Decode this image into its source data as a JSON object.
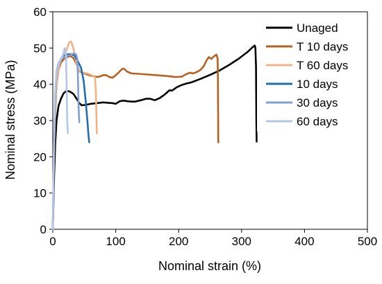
{
  "chart_data": {
    "type": "line",
    "xlabel": "Nominal strain (%)",
    "ylabel": "Nominal stress (MPa)",
    "xlim": [
      0,
      500
    ],
    "ylim": [
      0,
      60
    ],
    "x_ticks": [
      0,
      100,
      200,
      300,
      400,
      500
    ],
    "y_ticks": [
      0,
      10,
      20,
      30,
      40,
      50,
      60
    ],
    "grid": false,
    "legend_position": "top-right",
    "series": [
      {
        "name": "Unaged",
        "color": "#000000",
        "points": [
          [
            0,
            0
          ],
          [
            2,
            14
          ],
          [
            4,
            24
          ],
          [
            6,
            30
          ],
          [
            9,
            34
          ],
          [
            13,
            36
          ],
          [
            17,
            37.5
          ],
          [
            22,
            38.2
          ],
          [
            27,
            38
          ],
          [
            33,
            37.3
          ],
          [
            38,
            36
          ],
          [
            42,
            34.8
          ],
          [
            46,
            34.2
          ],
          [
            52,
            34.3
          ],
          [
            60,
            34.6
          ],
          [
            70,
            34.8
          ],
          [
            80,
            35
          ],
          [
            95,
            34.8
          ],
          [
            100,
            34.6
          ],
          [
            106,
            35.3
          ],
          [
            112,
            35.5
          ],
          [
            120,
            35.3
          ],
          [
            130,
            35.2
          ],
          [
            140,
            35.6
          ],
          [
            148,
            36
          ],
          [
            155,
            36
          ],
          [
            162,
            35.6
          ],
          [
            170,
            36.2
          ],
          [
            178,
            37.2
          ],
          [
            185,
            38.3
          ],
          [
            190,
            38.3
          ],
          [
            197,
            39.2
          ],
          [
            205,
            39.8
          ],
          [
            212,
            40.2
          ],
          [
            220,
            40.5
          ],
          [
            235,
            41.5
          ],
          [
            250,
            42.6
          ],
          [
            265,
            43.8
          ],
          [
            280,
            45.3
          ],
          [
            295,
            47
          ],
          [
            310,
            49
          ],
          [
            318,
            50.3
          ],
          [
            321,
            50.7
          ],
          [
            322,
            50
          ],
          [
            323,
            45
          ],
          [
            323.5,
            30
          ],
          [
            324,
            24.2
          ]
        ]
      },
      {
        "name": "T 10 days",
        "color": "#b8601e",
        "points": [
          [
            0,
            0
          ],
          [
            2,
            20
          ],
          [
            4,
            33
          ],
          [
            6,
            40
          ],
          [
            9,
            44
          ],
          [
            13,
            46
          ],
          [
            18,
            47
          ],
          [
            23,
            47.5
          ],
          [
            28,
            47.8
          ],
          [
            33,
            47.2
          ],
          [
            38,
            45.5
          ],
          [
            43,
            43.5
          ],
          [
            50,
            43
          ],
          [
            58,
            42.5
          ],
          [
            65,
            42.2
          ],
          [
            72,
            42
          ],
          [
            80,
            42.5
          ],
          [
            85,
            42.5
          ],
          [
            90,
            42
          ],
          [
            95,
            41.8
          ],
          [
            100,
            42.5
          ],
          [
            105,
            43.3
          ],
          [
            110,
            44.2
          ],
          [
            113,
            44.3
          ],
          [
            118,
            43.5
          ],
          [
            125,
            43
          ],
          [
            135,
            42.9
          ],
          [
            150,
            42.7
          ],
          [
            165,
            42.5
          ],
          [
            180,
            42.3
          ],
          [
            195,
            42
          ],
          [
            205,
            42.1
          ],
          [
            212,
            42.8
          ],
          [
            218,
            43.2
          ],
          [
            222,
            43
          ],
          [
            228,
            43.3
          ],
          [
            235,
            44
          ],
          [
            240,
            45
          ],
          [
            244,
            46.5
          ],
          [
            248,
            47.5
          ],
          [
            252,
            47
          ],
          [
            256,
            47.7
          ],
          [
            260,
            48.2
          ],
          [
            262,
            47
          ],
          [
            262.5,
            40
          ],
          [
            263,
            24
          ]
        ]
      },
      {
        "name": "T 60 days",
        "color": "#f4b183",
        "points": [
          [
            0,
            0
          ],
          [
            2,
            22
          ],
          [
            4,
            35
          ],
          [
            7,
            42
          ],
          [
            10,
            45
          ],
          [
            14,
            47
          ],
          [
            18,
            48
          ],
          [
            22,
            49.5
          ],
          [
            26,
            51.5
          ],
          [
            29,
            51.8
          ],
          [
            32,
            50.5
          ],
          [
            35,
            48
          ],
          [
            38,
            45.5
          ],
          [
            42,
            43.8
          ],
          [
            48,
            43.2
          ],
          [
            55,
            43
          ],
          [
            62,
            42.5
          ],
          [
            67,
            42
          ],
          [
            68.5,
            38
          ],
          [
            69.5,
            30
          ],
          [
            70,
            26.5
          ]
        ]
      },
      {
        "name": "10 days",
        "color": "#1f6eb4",
        "points": [
          [
            0,
            0
          ],
          [
            2,
            22
          ],
          [
            4,
            37
          ],
          [
            6,
            43
          ],
          [
            9,
            45.5
          ],
          [
            13,
            46.8
          ],
          [
            18,
            47.8
          ],
          [
            24,
            48.3
          ],
          [
            30,
            48.3
          ],
          [
            35,
            47.8
          ],
          [
            40,
            46.3
          ],
          [
            45,
            44.5
          ],
          [
            49,
            41
          ],
          [
            52,
            36
          ],
          [
            55,
            30
          ],
          [
            57,
            25.5
          ],
          [
            58,
            24
          ]
        ]
      },
      {
        "name": "30 days",
        "color": "#7f9fd4",
        "points": [
          [
            0,
            0
          ],
          [
            2,
            24
          ],
          [
            4,
            38
          ],
          [
            6,
            43.5
          ],
          [
            9,
            45.8
          ],
          [
            13,
            46.8
          ],
          [
            18,
            47.5
          ],
          [
            23,
            47.8
          ],
          [
            28,
            48.2
          ],
          [
            33,
            48.5
          ],
          [
            37,
            48.3
          ],
          [
            39,
            47
          ],
          [
            40,
            42
          ],
          [
            41,
            34
          ],
          [
            42,
            29.5
          ]
        ]
      },
      {
        "name": "60 days",
        "color": "#b4c6e7",
        "points": [
          [
            0,
            0
          ],
          [
            2,
            25
          ],
          [
            4,
            38
          ],
          [
            6,
            43
          ],
          [
            9,
            45.5
          ],
          [
            12,
            46.8
          ],
          [
            16,
            48
          ],
          [
            19,
            50
          ],
          [
            21,
            48.5
          ],
          [
            22,
            40
          ],
          [
            23,
            30
          ],
          [
            24,
            26.5
          ]
        ]
      }
    ]
  }
}
